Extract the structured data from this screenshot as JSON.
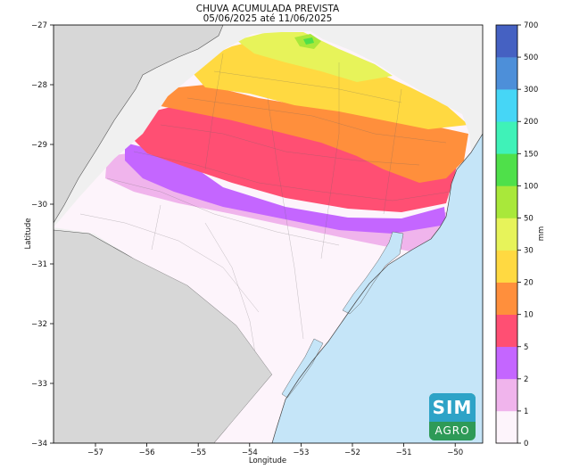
{
  "map": {
    "title": "CHUVA ACUMULADA PREVISTA",
    "subtitle": "05/06/2025 até 11/06/2025",
    "x_axis_label": "Longitude",
    "y_axis_label": "Latitude",
    "x_ticks": [
      "−57",
      "−56",
      "−55",
      "−54",
      "−53",
      "−52",
      "−51",
      "−50"
    ],
    "y_ticks": [
      "−27",
      "−28",
      "−29",
      "−30",
      "−31",
      "−32",
      "−33",
      "−34"
    ],
    "colors": {
      "ocean": "#c5e5f8",
      "neighbor_land": "#d7d7d7",
      "other_land": "#f0f0f0",
      "border": "#444444"
    }
  },
  "colorbar": {
    "unit": "mm",
    "levels": [
      "0",
      "1",
      "2",
      "5",
      "10",
      "20",
      "30",
      "50",
      "100",
      "150",
      "200",
      "300",
      "500",
      "700"
    ],
    "colors": [
      "#fdf4fb",
      "#f0b4ec",
      "#c466ff",
      "#ff4f73",
      "#ff8f3c",
      "#ffd941",
      "#e7f35a",
      "#a9e83a",
      "#4fe04a",
      "#3ff2b8",
      "#46d6f6",
      "#4d8fd9",
      "#4561c2"
    ]
  },
  "logo": {
    "top_text": "SIM",
    "bottom_text": "AGRO"
  }
}
